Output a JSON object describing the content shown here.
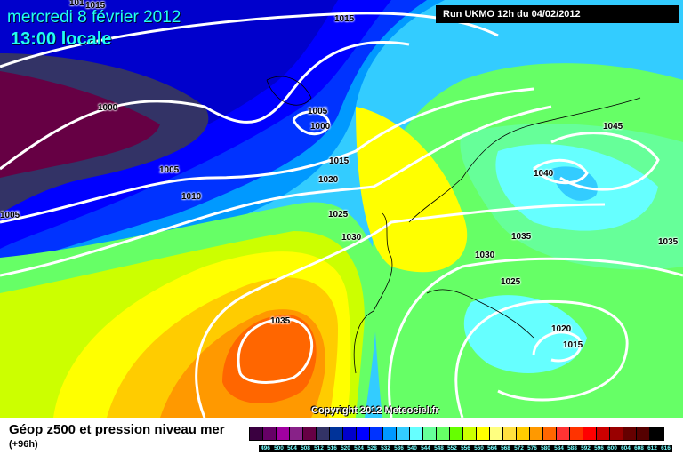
{
  "header": {
    "date": "mercredi 8 février 2012",
    "time": "13:00 locale",
    "run": "Run UKMO 12h du 04/02/2012",
    "copyright": "Copyright 2012 Meteociel.fr"
  },
  "isobar_labels": [
    {
      "text": "101"
    },
    {
      "text": "1015"
    },
    {
      "text": "1015"
    },
    {
      "text": "1000"
    },
    {
      "text": "1005"
    },
    {
      "text": "1000"
    },
    {
      "text": "1015"
    },
    {
      "text": "1020"
    },
    {
      "text": "1005"
    },
    {
      "text": "1010"
    },
    {
      "text": "1005"
    },
    {
      "text": "1025"
    },
    {
      "text": "1030"
    },
    {
      "text": "1045"
    },
    {
      "text": "1040"
    },
    {
      "text": "1035"
    },
    {
      "text": "1030"
    },
    {
      "text": "1025"
    },
    {
      "text": "1035"
    },
    {
      "text": "1020"
    },
    {
      "text": "1015"
    },
    {
      "text": "1035"
    }
  ],
  "legend": {
    "title": "Géop z500 et pression niveau mer",
    "subtitle": "(+96h)",
    "levels": [
      "496",
      "500",
      "504",
      "508",
      "512",
      "516",
      "520",
      "524",
      "528",
      "532",
      "536",
      "540",
      "544",
      "548",
      "552",
      "556",
      "560",
      "564",
      "568",
      "572",
      "576",
      "580",
      "584",
      "588",
      "592",
      "596",
      "600",
      "604",
      "608",
      "612",
      "616"
    ],
    "colors": [
      "#3a0040",
      "#660066",
      "#a000a0",
      "#882288",
      "#660044",
      "#333366",
      "#003399",
      "#0000cc",
      "#0000ff",
      "#0033ff",
      "#0099ff",
      "#33ccff",
      "#66ffff",
      "#66ff99",
      "#66ff66",
      "#66ff00",
      "#ccff00",
      "#ffff00",
      "#ffff80",
      "#ffe040",
      "#ffcc00",
      "#ff9900",
      "#ff6600",
      "#ff3333",
      "#ff3300",
      "#ff0000",
      "#cc0000",
      "#990000",
      "#660000",
      "#550000",
      "#000000"
    ]
  }
}
